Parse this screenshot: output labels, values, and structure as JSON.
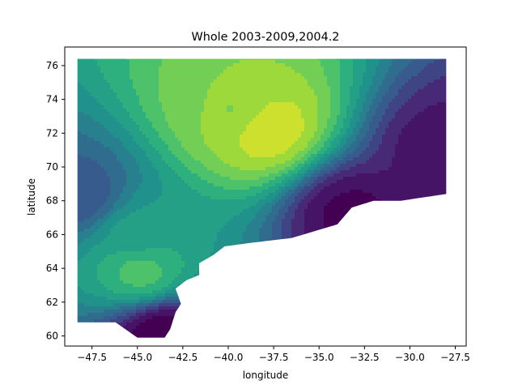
{
  "chart_data": {
    "type": "heatmap",
    "title": "Whole 2003-2009,2004.2",
    "xlabel": "longitude",
    "ylabel": "latitude",
    "xlim": [
      -49.0,
      -26.9
    ],
    "ylim": [
      59.4,
      77.1
    ],
    "xticks": [
      -47.5,
      -45.0,
      -42.5,
      -40.0,
      -37.5,
      -35.0,
      -32.5,
      -30.0,
      -27.5
    ],
    "xtick_labels": [
      "−47.5",
      "−45.0",
      "−42.5",
      "−40.0",
      "−37.5",
      "−35.0",
      "−32.5",
      "−30.0",
      "−27.5"
    ],
    "yticks": [
      60,
      62,
      64,
      66,
      68,
      70,
      72,
      74,
      76
    ],
    "ytick_labels": [
      "60",
      "62",
      "64",
      "66",
      "68",
      "70",
      "72",
      "74",
      "76"
    ],
    "colormap": "viridis",
    "grid": false,
    "legend": "none",
    "domain_outline": [
      [
        -48.3,
        76.4
      ],
      [
        -28.0,
        76.4
      ],
      [
        -28.0,
        68.4
      ],
      [
        -30.5,
        68.0
      ],
      [
        -32.0,
        68.0
      ],
      [
        -33.2,
        67.6
      ],
      [
        -34.0,
        66.6
      ],
      [
        -36.5,
        65.8
      ],
      [
        -38.8,
        65.5
      ],
      [
        -40.2,
        65.3
      ],
      [
        -40.8,
        64.8
      ],
      [
        -41.6,
        64.3
      ],
      [
        -41.6,
        63.6
      ],
      [
        -42.3,
        63.3
      ],
      [
        -42.9,
        62.8
      ],
      [
        -42.6,
        61.9
      ],
      [
        -42.9,
        61.4
      ],
      [
        -43.2,
        60.4
      ],
      [
        -43.5,
        59.9
      ],
      [
        -45.0,
        59.9
      ],
      [
        -46.2,
        60.8
      ],
      [
        -48.3,
        60.8
      ]
    ],
    "field_features": [
      {
        "description": "maximum (brightest yellow)",
        "lon": -38.0,
        "lat": 72.3,
        "level": 1.0
      },
      {
        "description": "high plateau",
        "lon": -39.5,
        "lat": 73.2,
        "level": 0.85
      },
      {
        "description": "secondary high",
        "lon": -44.8,
        "lat": 63.8,
        "level": 0.75
      },
      {
        "description": "moderate west band",
        "lon": -45.0,
        "lat": 66.0,
        "level": 0.6
      },
      {
        "description": "low west edge",
        "lon": -48.2,
        "lat": 68.2,
        "level": 0.3
      },
      {
        "description": "low east edge",
        "lon": -28.2,
        "lat": 71.0,
        "level": 0.1
      },
      {
        "description": "low southeast coast",
        "lon": -33.3,
        "lat": 67.3,
        "level": 0.05
      },
      {
        "description": "minimum south tip",
        "lon": -43.6,
        "lat": 60.1,
        "level": 0.0
      }
    ]
  }
}
